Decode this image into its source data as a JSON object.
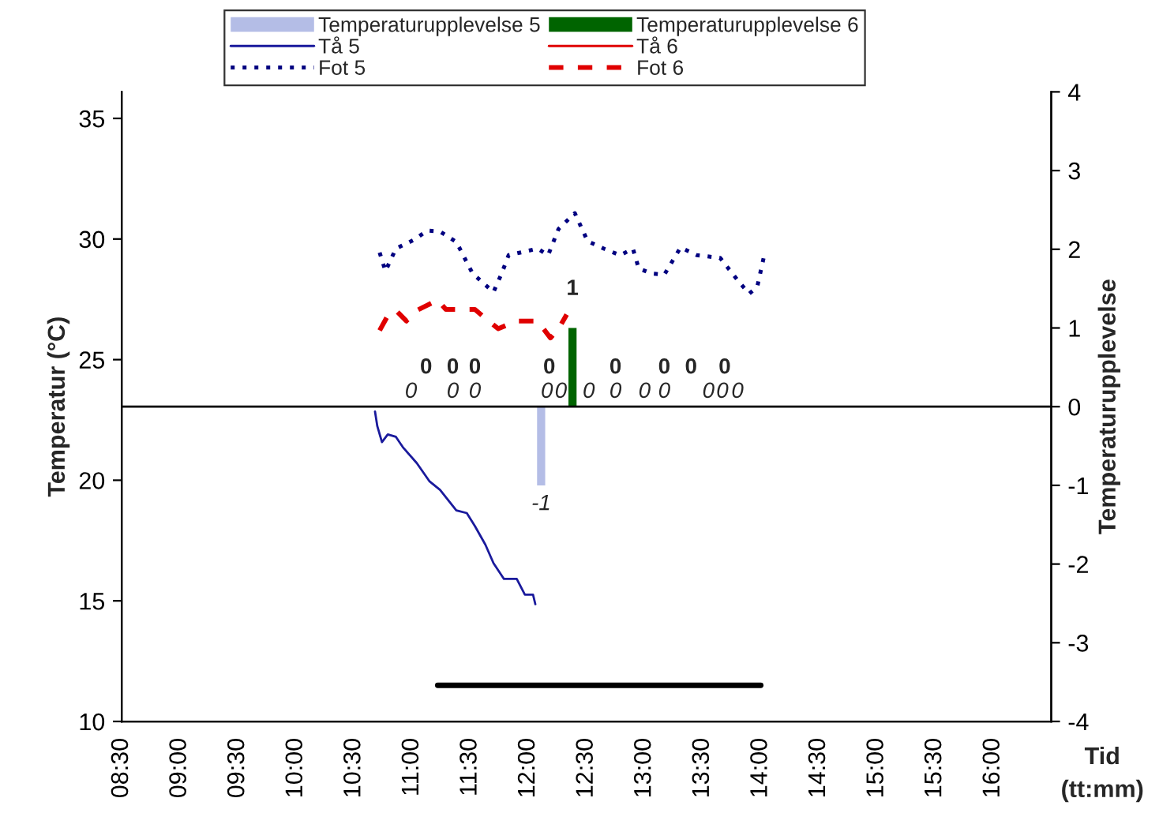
{
  "chart_data": {
    "type": "line",
    "xlabel": "Tid\n(tt:mm)",
    "ylabel": "Temperatur (°C)",
    "y2label": "Temperaturupplevelse",
    "xlim": [
      8.5,
      16.5
    ],
    "xticks": [
      {
        "value": 8.5,
        "label": "08:30"
      },
      {
        "value": 9.0,
        "label": "09:00"
      },
      {
        "value": 9.5,
        "label": "09:30"
      },
      {
        "value": 10.0,
        "label": "10:00"
      },
      {
        "value": 10.5,
        "label": "10:30"
      },
      {
        "value": 11.0,
        "label": "11:00"
      },
      {
        "value": 11.5,
        "label": "11:30"
      },
      {
        "value": 12.0,
        "label": "12:00"
      },
      {
        "value": 12.5,
        "label": "12:30"
      },
      {
        "value": 13.0,
        "label": "13:00"
      },
      {
        "value": 13.5,
        "label": "13:30"
      },
      {
        "value": 14.0,
        "label": "14:00"
      },
      {
        "value": 14.5,
        "label": "14:30"
      },
      {
        "value": 15.0,
        "label": "15:00"
      },
      {
        "value": 15.5,
        "label": "15:30"
      },
      {
        "value": 16.0,
        "label": "16:00"
      }
    ],
    "ylim": [
      10,
      36.1
    ],
    "yticks": [
      10,
      15,
      20,
      25,
      30,
      35
    ],
    "y2lim": [
      -4,
      4
    ],
    "y2ticks": [
      -4,
      -3,
      -2,
      -1,
      0,
      1,
      2,
      3,
      4
    ],
    "grid": false,
    "legend": "top",
    "marker": "none",
    "ref_lines": [
      {
        "axis": "y2",
        "value": 0,
        "color": "#000000",
        "line_style": "solid"
      }
    ],
    "series": [
      {
        "name": "Temperaturupplevelse 5",
        "type": "bar",
        "axis": "y2",
        "color": "#b4bde6",
        "x": [
          10.99,
          11.35,
          11.54,
          12.11,
          12.16,
          12.28,
          12.52,
          12.75,
          13.0,
          13.17,
          13.55,
          13.67,
          13.8
        ],
        "values": [
          0,
          0,
          0,
          -1,
          0,
          0,
          0,
          0,
          0,
          0,
          0,
          0,
          0
        ],
        "value_labels": [
          "0",
          "0",
          "0",
          "-1",
          "0",
          "0",
          "0",
          "0",
          "0",
          "0",
          "0",
          "0",
          "0"
        ]
      },
      {
        "name": "Temperaturupplevelse 6",
        "type": "bar",
        "axis": "y2",
        "color": "#006400",
        "x": [
          11.12,
          11.35,
          11.54,
          12.18,
          12.38,
          12.75,
          13.17,
          13.4,
          13.69
        ],
        "values": [
          0,
          0,
          0,
          0,
          1,
          0,
          0,
          0,
          0
        ],
        "value_labels": [
          "0",
          "0",
          "0",
          "0",
          "1",
          "0",
          "0",
          "0",
          "0"
        ]
      },
      {
        "name": "Tå 5",
        "color": "#1a1a9c",
        "line_style": "solid",
        "x": [
          10.68,
          10.7,
          10.74,
          10.79,
          10.86,
          10.92,
          11.04,
          11.15,
          11.24,
          11.38,
          11.47,
          11.54,
          11.63,
          11.7,
          11.79,
          11.9,
          11.97,
          12.04,
          12.06
        ],
        "values": [
          22.85,
          22.24,
          21.58,
          21.9,
          21.8,
          21.37,
          20.71,
          19.95,
          19.6,
          18.75,
          18.64,
          18.1,
          17.33,
          16.56,
          15.91,
          15.91,
          15.26,
          15.26,
          14.86
        ]
      },
      {
        "name": "Tå 6",
        "color": "#e00000",
        "line_style": "solid"
      },
      {
        "name": "Fot 5",
        "color": "#000080",
        "line_style": "dotted",
        "x": [
          10.72,
          10.77,
          10.86,
          11.02,
          11.13,
          11.24,
          11.38,
          11.52,
          11.7,
          11.77,
          11.83,
          12.08,
          12.17,
          12.26,
          12.4,
          12.51,
          12.65,
          12.79,
          12.9,
          12.95,
          13.06,
          13.17,
          13.31,
          13.45,
          13.65,
          13.81,
          13.9,
          13.97,
          14.03
        ],
        "values": [
          29.44,
          28.67,
          29.6,
          29.98,
          30.35,
          30.31,
          29.88,
          28.57,
          27.8,
          28.57,
          29.33,
          29.6,
          29.33,
          30.42,
          31.07,
          29.91,
          29.6,
          29.33,
          29.6,
          28.78,
          28.57,
          28.52,
          29.65,
          29.33,
          29.22,
          28.24,
          27.73,
          28.02,
          29.33
        ]
      },
      {
        "name": "Fot 6",
        "color": "#e00000",
        "line_style": "dashed",
        "x": [
          10.72,
          10.79,
          10.86,
          10.95,
          11.04,
          11.22,
          11.29,
          11.54,
          11.63,
          11.74,
          11.9,
          12.08,
          12.19,
          12.26,
          12.33
        ],
        "values": [
          26.21,
          26.82,
          27.04,
          26.6,
          27.04,
          27.47,
          27.08,
          27.08,
          26.71,
          26.28,
          26.6,
          26.6,
          25.9,
          26.28,
          26.87
        ]
      },
      {
        "color": "#000000",
        "line_style": "solid",
        "x": [
          11.22,
          14.0
        ],
        "values": [
          11.5,
          11.5
        ]
      }
    ]
  }
}
